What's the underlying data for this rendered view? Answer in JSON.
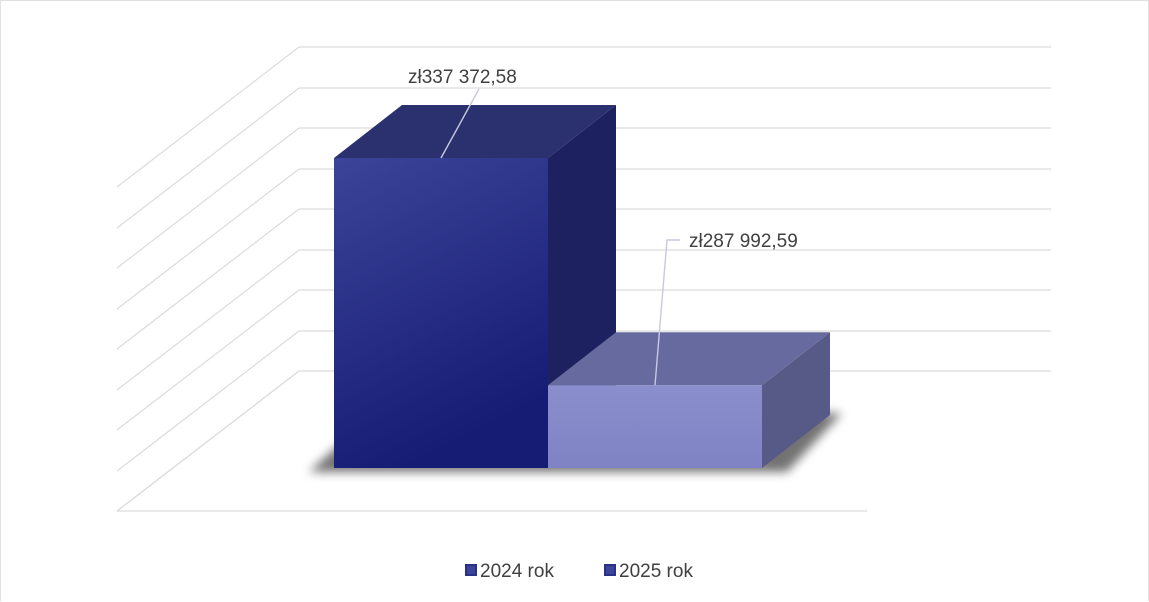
{
  "chart_data": {
    "type": "bar",
    "style": "3d-column",
    "categories": [
      ""
    ],
    "series": [
      {
        "name": "2024 rok",
        "values": [
          337372.58
        ],
        "label": "zł337 372,58",
        "color": "#2a3189"
      },
      {
        "name": "2025 rok",
        "values": [
          287992.59
        ],
        "label": "zł287 992,59",
        "color": "#8488c8"
      }
    ],
    "ylim": [
      270000,
      345000
    ],
    "grid": true,
    "legend": "bottom",
    "title": "",
    "xlabel": "",
    "ylabel": ""
  }
}
